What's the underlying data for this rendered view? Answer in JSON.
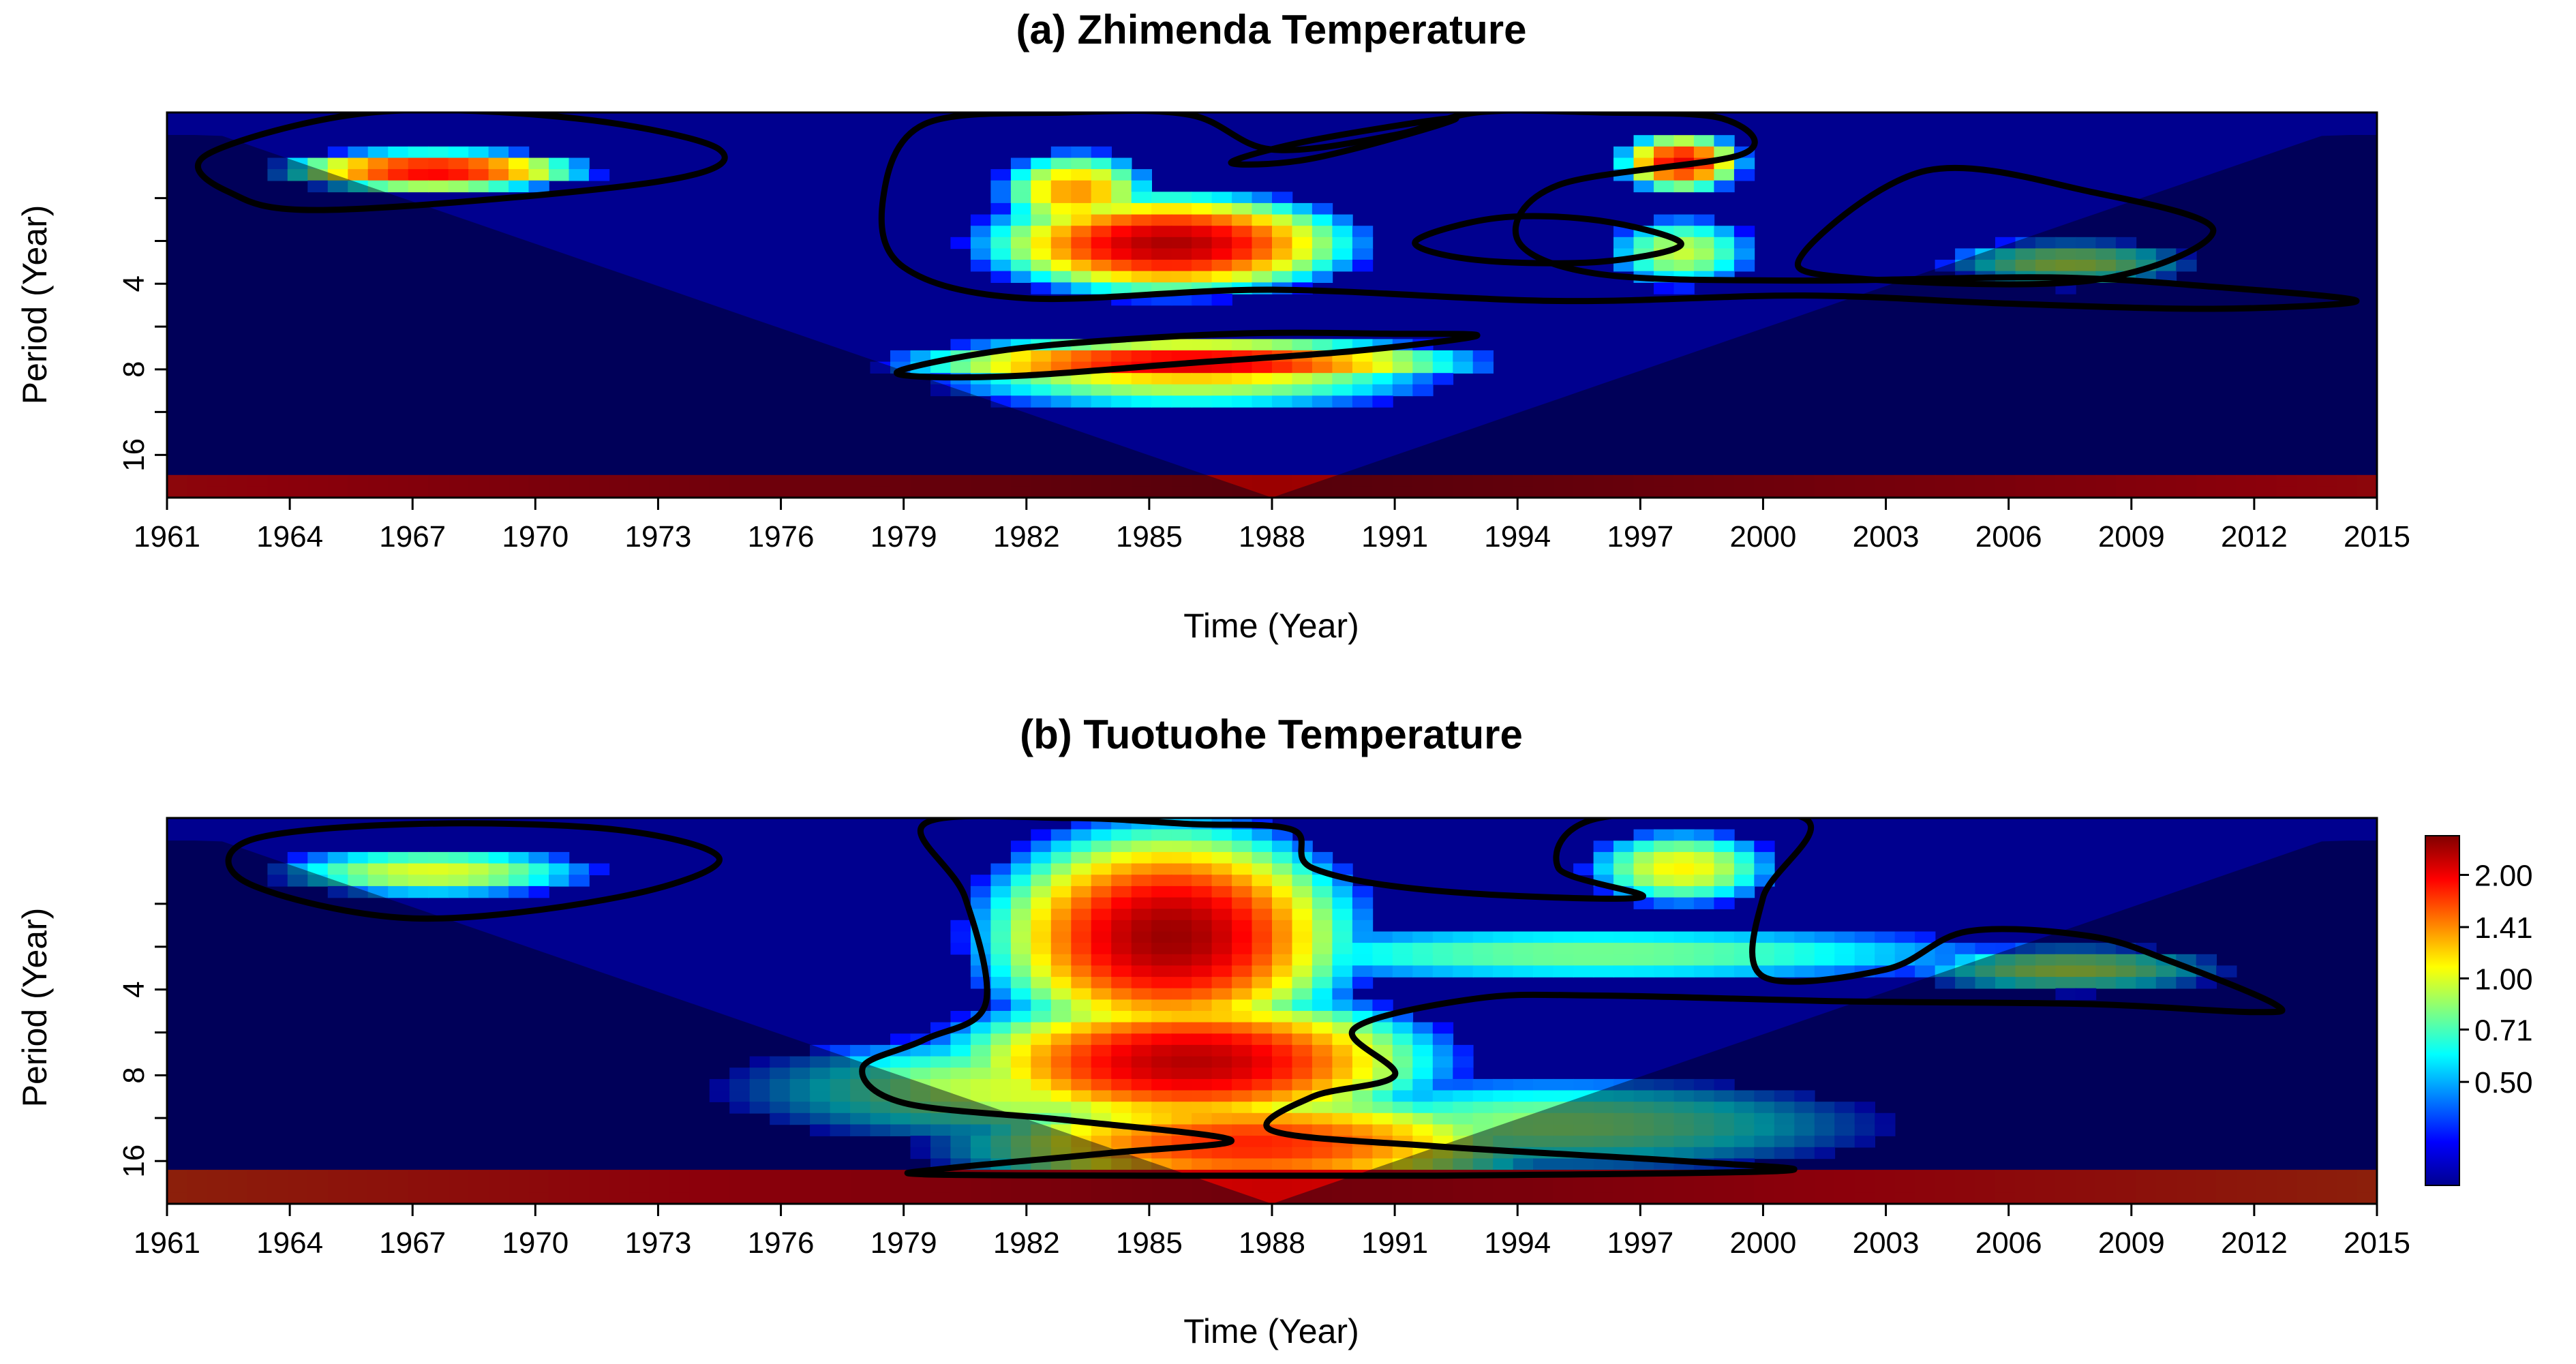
{
  "chart_data": [
    {
      "type": "heatmap",
      "subtype": "wavelet power spectrum",
      "title": "(a) Zhimenda Temperature",
      "xlabel": "Time (Year)",
      "ylabel": "Period (Year)",
      "xlim": [
        1961,
        2015
      ],
      "x_ticks": [
        "1961",
        "1964",
        "1967",
        "1970",
        "1973",
        "1976",
        "1979",
        "1982",
        "1985",
        "1988",
        "1991",
        "1994",
        "1997",
        "2000",
        "2003",
        "2006",
        "2009",
        "2012",
        "2015"
      ],
      "y_scale": "log2",
      "ylim": [
        1,
        22.6
      ],
      "y_ticks": [
        "4",
        "8",
        "16"
      ],
      "cone_of_influence": {
        "center_year": 1988,
        "edge_period": 1.2,
        "max_period": 22.6
      },
      "power_regions": [
        {
          "t": 1967.5,
          "p": 1.6,
          "st": 2.2,
          "sp": 0.14,
          "v": 2.05
        },
        {
          "t": 1985.5,
          "p": 2.9,
          "st": 2.6,
          "sp": 0.34,
          "v": 2.35
        },
        {
          "t": 1983.2,
          "p": 1.9,
          "st": 1.2,
          "sp": 0.3,
          "v": 1.4
        },
        {
          "t": 1998,
          "p": 1.5,
          "st": 0.9,
          "sp": 0.2,
          "v": 2.05
        },
        {
          "t": 1998,
          "p": 3.1,
          "st": 1.3,
          "sp": 0.3,
          "v": 0.95
        },
        {
          "t": 2007.5,
          "p": 3.4,
          "st": 2.2,
          "sp": 0.2,
          "v": 0.95
        },
        {
          "t": 1986,
          "p": 7.6,
          "st": 4.0,
          "sp": 0.17,
          "v": 2.15
        },
        {
          "t": 1986,
          "p": 9.3,
          "st": 4.4,
          "sp": 0.18,
          "v": 0.9
        }
      ],
      "base_band": {
        "period_from": 18.5,
        "period_to": 22.6,
        "v": 2.25
      },
      "significance_contours": [
        [
          [
            1962,
            1.4
          ],
          [
            1966,
            1.0
          ],
          [
            1971,
            1.05
          ],
          [
            1974.5,
            1.35
          ],
          [
            1973,
            1.75
          ],
          [
            1965,
            2.2
          ],
          [
            1962.5,
            1.9
          ]
        ],
        [
          [
            1979.5,
            1.1
          ],
          [
            1983,
            1.0
          ],
          [
            1986,
            1.02
          ],
          [
            1988,
            1.35
          ],
          [
            1991,
            1.2
          ],
          [
            1993,
            1.0
          ],
          [
            1996,
            1.0
          ],
          [
            1999,
            1.05
          ],
          [
            1999.5,
            1.4
          ],
          [
            1995,
            1.8
          ],
          [
            1994,
            2.8
          ],
          [
            1996,
            3.7
          ],
          [
            2001,
            3.9
          ],
          [
            2007,
            3.8
          ],
          [
            2011,
            4.1
          ],
          [
            2014.5,
            4.6
          ],
          [
            2011,
            4.9
          ],
          [
            2006,
            4.7
          ],
          [
            2001,
            4.4
          ],
          [
            1995,
            4.6
          ],
          [
            1988,
            4.2
          ],
          [
            1982,
            4.5
          ],
          [
            1979,
            3.5
          ],
          [
            1978.5,
            2.0
          ]
        ],
        [
          [
            1987,
            1.5
          ],
          [
            1989,
            1.25
          ],
          [
            1992.5,
            1.05
          ],
          [
            1989,
            1.45
          ]
        ],
        [
          [
            2001,
            3.1
          ],
          [
            2004,
            1.6
          ],
          [
            2008,
            1.9
          ],
          [
            2011,
            2.6
          ],
          [
            2008,
            3.9
          ],
          [
            2002,
            3.8
          ]
        ],
        [
          [
            1991.5,
            2.85
          ],
          [
            1993.5,
            2.35
          ],
          [
            1996,
            2.4
          ],
          [
            1998,
            2.9
          ],
          [
            1996,
            3.35
          ],
          [
            1993,
            3.3
          ]
        ],
        [
          [
            1979,
            8.0
          ],
          [
            1982,
            6.7
          ],
          [
            1987,
            6.0
          ],
          [
            1991,
            6.0
          ],
          [
            1993,
            6.1
          ],
          [
            1990,
            6.9
          ],
          [
            1986,
            7.6
          ],
          [
            1982,
            8.4
          ],
          [
            1979.5,
            8.5
          ]
        ]
      ]
    },
    {
      "type": "heatmap",
      "subtype": "wavelet power spectrum",
      "title": "(b) Tuotuohe Temperature",
      "xlabel": "Time (Year)",
      "ylabel": "Period (Year)",
      "xlim": [
        1961,
        2015
      ],
      "x_ticks": [
        "1961",
        "1964",
        "1967",
        "1970",
        "1973",
        "1976",
        "1979",
        "1982",
        "1985",
        "1988",
        "1991",
        "1994",
        "1997",
        "2000",
        "2003",
        "2006",
        "2009",
        "2012",
        "2015"
      ],
      "y_scale": "log2",
      "ylim": [
        1,
        22.6
      ],
      "y_ticks": [
        "4",
        "8",
        "16"
      ],
      "cone_of_influence": {
        "center_year": 1988,
        "edge_period": 1.2,
        "max_period": 22.6
      },
      "power_regions": [
        {
          "t": 1967.5,
          "p": 1.55,
          "st": 2.8,
          "sp": 0.2,
          "v": 1.02
        },
        {
          "t": 1985.5,
          "p": 2.6,
          "st": 2.6,
          "sp": 0.75,
          "v": 2.45
        },
        {
          "t": 1986.0,
          "p": 7.2,
          "st": 3.5,
          "sp": 0.48,
          "v": 2.3
        },
        {
          "t": 1987.5,
          "p": 14.0,
          "st": 4.5,
          "sp": 0.4,
          "v": 1.8
        },
        {
          "t": 1982.5,
          "p": 9.0,
          "st": 5.5,
          "sp": 0.45,
          "v": 1.0
        },
        {
          "t": 1995.0,
          "p": 12.0,
          "st": 6.0,
          "sp": 0.42,
          "v": 0.85
        },
        {
          "t": 1998.0,
          "p": 1.5,
          "st": 1.6,
          "sp": 0.3,
          "v": 1.1
        },
        {
          "t": 2007.5,
          "p": 3.4,
          "st": 2.8,
          "sp": 0.2,
          "v": 0.95
        },
        {
          "t": 1996.0,
          "p": 3.0,
          "st": 8.0,
          "sp": 0.25,
          "v": 0.8
        }
      ],
      "base_band": {
        "period_from": 16.5,
        "period_to": 22.6,
        "v": 2.0
      },
      "significance_contours": [
        [
          [
            1963,
            1.2
          ],
          [
            1967,
            1.05
          ],
          [
            1972,
            1.1
          ],
          [
            1974.5,
            1.4
          ],
          [
            1972,
            1.9
          ],
          [
            1967,
            2.25
          ],
          [
            1963,
            1.7
          ]
        ],
        [
          [
            1979.5,
            1.05
          ],
          [
            1980.5,
            1.9
          ],
          [
            1981,
            4.5
          ],
          [
            1979.5,
            6.0
          ],
          [
            1978,
            7.5
          ],
          [
            1979,
            10.0
          ],
          [
            1983,
            11.5
          ],
          [
            1987,
            13.5
          ],
          [
            1984,
            15.0
          ],
          [
            1980,
            17.0
          ],
          [
            1979.5,
            17.8
          ],
          [
            1985,
            18.0
          ],
          [
            1992,
            18.0
          ],
          [
            2000.5,
            17.3
          ],
          [
            1998,
            16.0
          ],
          [
            1992,
            14.2
          ],
          [
            1988,
            12.5
          ],
          [
            1989,
            9.5
          ],
          [
            1991,
            8.0
          ],
          [
            1990,
            5.5
          ],
          [
            1993,
            4.3
          ],
          [
            1996,
            4.2
          ],
          [
            2002,
            4.4
          ],
          [
            2008,
            4.5
          ],
          [
            2012,
            4.8
          ],
          [
            2012.5,
            4.5
          ],
          [
            2010,
            3.2
          ],
          [
            2008,
            2.6
          ],
          [
            2005,
            2.5
          ],
          [
            2003,
            3.4
          ],
          [
            2000,
            3.6
          ],
          [
            2000,
            1.9
          ],
          [
            2001,
            1.0
          ],
          [
            1996,
            1.0
          ],
          [
            1995,
            1.5
          ],
          [
            1997,
            1.9
          ],
          [
            1992,
            1.8
          ],
          [
            1989,
            1.5
          ],
          [
            1988.5,
            1.1
          ],
          [
            1986,
            1.05
          ],
          [
            1983,
            1.0
          ]
        ]
      ]
    }
  ],
  "colorbar": {
    "tick_labels": [
      "2.00",
      "1.41",
      "1.00",
      "0.71",
      "0.50"
    ],
    "tick_values": [
      2.0,
      1.41,
      1.0,
      0.71,
      0.5
    ],
    "range": [
      0.25,
      2.6
    ],
    "scale": "log",
    "colormap": [
      "#00008f",
      "#0000ff",
      "#0080ff",
      "#00ffff",
      "#80ff80",
      "#ffff00",
      "#ff8000",
      "#ff0000",
      "#800000"
    ]
  }
}
